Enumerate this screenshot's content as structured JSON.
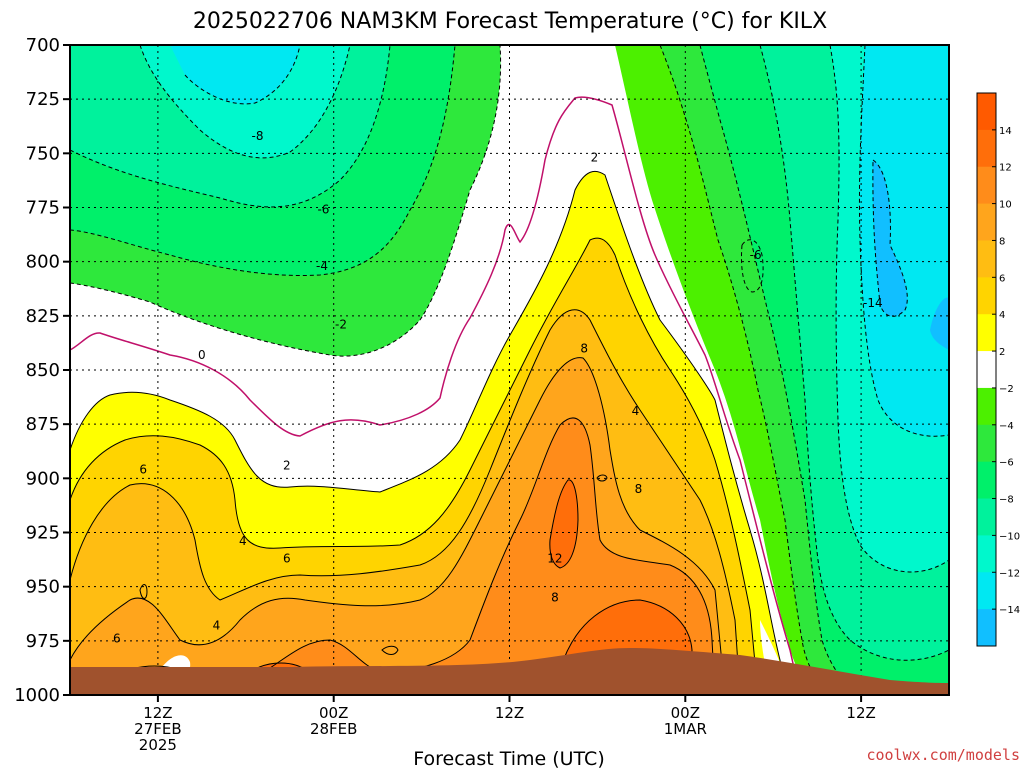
{
  "chart_data": {
    "type": "contour",
    "title": "2025022706 NAM3KM Forecast Temperature (°C) for KILX",
    "xlabel": "Forecast Time (UTC)",
    "ylabel": "",
    "credit": "coolwx.com/models",
    "y_axis": {
      "unit": "hPa",
      "ticks": [
        700,
        725,
        750,
        775,
        800,
        825,
        850,
        875,
        900,
        925,
        950,
        975,
        1000
      ],
      "ylim": [
        700,
        1000
      ],
      "inverted": true
    },
    "x_axis": {
      "unit": "hours since 2025-02-27 06Z",
      "xlim": [
        0,
        60
      ],
      "ticks": [
        {
          "hour": 6,
          "lines": [
            "12Z",
            "27FEB",
            "2025"
          ]
        },
        {
          "hour": 18,
          "lines": [
            "00Z",
            "28FEB"
          ]
        },
        {
          "hour": 30,
          "lines": [
            "12Z"
          ]
        },
        {
          "hour": 42,
          "lines": [
            "00Z",
            "1MAR"
          ]
        },
        {
          "hour": 54,
          "lines": [
            "12Z"
          ]
        }
      ]
    },
    "grid": true,
    "colorbar": {
      "ticks": [
        14,
        12,
        10,
        8,
        6,
        4,
        2,
        -2,
        -4,
        -6,
        -8,
        -10,
        -12,
        -14
      ],
      "bands": [
        {
          "from": 14,
          "to": 16,
          "color": "#ff5a00"
        },
        {
          "from": 12,
          "to": 14,
          "color": "#ff6e0a"
        },
        {
          "from": 10,
          "to": 12,
          "color": "#ff8c1a"
        },
        {
          "from": 8,
          "to": 10,
          "color": "#ffa51c"
        },
        {
          "from": 6,
          "to": 8,
          "color": "#ffbd12"
        },
        {
          "from": 4,
          "to": 6,
          "color": "#ffd400"
        },
        {
          "from": 2,
          "to": 4,
          "color": "#ffff00"
        },
        {
          "from": -2,
          "to": 2,
          "color": "#ffffff"
        },
        {
          "from": -4,
          "to": -2,
          "color": "#4cf000"
        },
        {
          "from": -6,
          "to": -4,
          "color": "#2ee83c"
        },
        {
          "from": -8,
          "to": -6,
          "color": "#00f06a"
        },
        {
          "from": -10,
          "to": -8,
          "color": "#00f29c"
        },
        {
          "from": -12,
          "to": -10,
          "color": "#00f8cc"
        },
        {
          "from": -14,
          "to": -12,
          "color": "#00e8f2"
        },
        {
          "from": -16,
          "to": -14,
          "color": "#11bfff"
        }
      ]
    },
    "contour_labels": [
      {
        "value": "-8",
        "hour": 12.8,
        "p": 742
      },
      {
        "value": "-6",
        "hour": 17.3,
        "p": 776
      },
      {
        "value": "-4",
        "hour": 17.2,
        "p": 802
      },
      {
        "value": "-2",
        "hour": 18.5,
        "p": 829
      },
      {
        "value": "0",
        "hour": 9.0,
        "p": 843
      },
      {
        "value": "2",
        "hour": 14.8,
        "p": 894
      },
      {
        "value": "6",
        "hour": 5.0,
        "p": 896
      },
      {
        "value": "4",
        "hour": 11.8,
        "p": 929
      },
      {
        "value": "6",
        "hour": 14.8,
        "p": 937
      },
      {
        "value": "4",
        "hour": 10.0,
        "p": 968
      },
      {
        "value": "6",
        "hour": 3.2,
        "p": 974
      },
      {
        "value": "2",
        "hour": 35.8,
        "p": 752
      },
      {
        "value": "8",
        "hour": 35.1,
        "p": 840
      },
      {
        "value": "4",
        "hour": 38.6,
        "p": 869
      },
      {
        "value": "8",
        "hour": 38.8,
        "p": 905
      },
      {
        "value": "12",
        "hour": 33.1,
        "p": 937
      },
      {
        "value": "8",
        "hour": 33.1,
        "p": 955
      },
      {
        "value": "-6",
        "hour": 46.8,
        "p": 797
      },
      {
        "value": "-14",
        "hour": 54.8,
        "p": 819
      }
    ]
  }
}
